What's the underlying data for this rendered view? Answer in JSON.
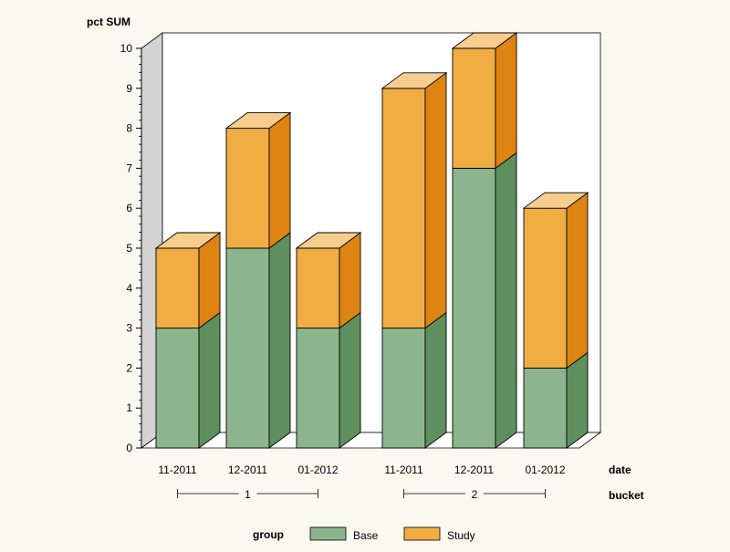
{
  "chart_data": {
    "type": "bar",
    "stacked": true,
    "style": "3d",
    "ylabel": "pct SUM",
    "xlabel_inner": "date",
    "xlabel_outer": "bucket",
    "ylim": [
      0,
      10
    ],
    "yticks": [
      0,
      1,
      2,
      3,
      4,
      5,
      6,
      7,
      8,
      9,
      10
    ],
    "groups": [
      {
        "label": "1",
        "categories": [
          "11-2011",
          "12-2011",
          "01-2012"
        ]
      },
      {
        "label": "2",
        "categories": [
          "11-2011",
          "12-2011",
          "01-2012"
        ]
      }
    ],
    "series": [
      {
        "name": "Base",
        "color": "#8db58d",
        "side_color": "#5f8f5f",
        "top_color": "#b7d3b7",
        "values": [
          3,
          5,
          3,
          3,
          7,
          2
        ]
      },
      {
        "name": "Study",
        "color": "#f0ad44",
        "side_color": "#de8412",
        "top_color": "#f7cd8e",
        "values": [
          2,
          3,
          2,
          6,
          3,
          4
        ]
      }
    ],
    "legend": {
      "title": "group",
      "position": "bottom"
    },
    "grid": false
  }
}
